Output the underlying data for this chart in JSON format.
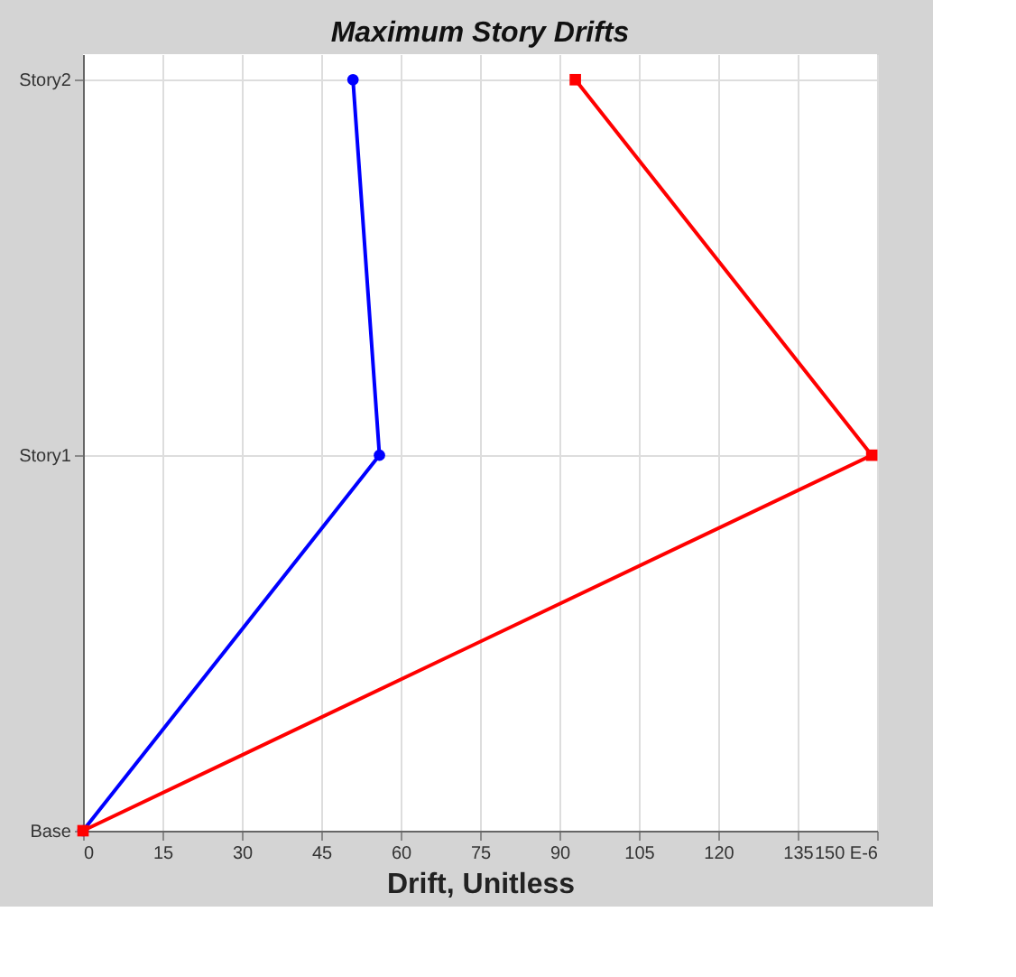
{
  "chart_data": {
    "type": "line",
    "orientation": "horizontal",
    "title": "Maximum Story Drifts",
    "xlabel": "Drift, Unitless",
    "categories": [
      "Story2",
      "Story1",
      "Base"
    ],
    "series": [
      {
        "color": "#0000ff",
        "marker": "circle",
        "values": [
          51,
          56,
          0
        ]
      },
      {
        "color": "#ff0000",
        "marker": "square",
        "values": [
          93,
          149,
          0
        ]
      }
    ],
    "xlim": [
      0,
      150
    ],
    "xticks": [
      0,
      15,
      30,
      45,
      60,
      75,
      90,
      105,
      120,
      135,
      {
        "value": 150,
        "label": "150 E-6"
      }
    ],
    "grid": true
  }
}
